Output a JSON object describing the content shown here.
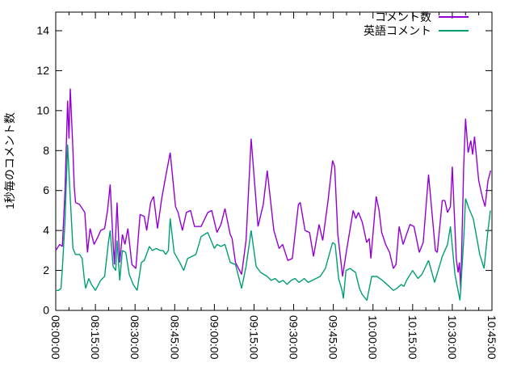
{
  "chart_data": {
    "type": "line",
    "title": "",
    "background": "#ffffff",
    "grid": false,
    "border_color": "#000000",
    "x_axis": {
      "label": "",
      "tick_labels": [
        "08:00:00",
        "08:15:00",
        "08:30:00",
        "08:45:00",
        "09:00:00",
        "09:15:00",
        "09:30:00",
        "09:45:00",
        "10:00:00",
        "10:15:00",
        "10:30:00",
        "10:45:00"
      ],
      "tick_minutes": [
        0,
        15,
        30,
        45,
        60,
        75,
        90,
        105,
        120,
        135,
        150,
        165
      ],
      "minor_tick_minutes": 5,
      "range_minutes": [
        0,
        165
      ],
      "labels_rotated_deg": 90
    },
    "y_axis": {
      "label": "1秒毎のコメント数",
      "ticks": [
        0,
        2,
        4,
        6,
        8,
        10,
        12,
        14
      ],
      "range": [
        0,
        14.9
      ]
    },
    "legend": {
      "position": "top-right-inside",
      "entries": [
        "コメント数",
        "英語コメント"
      ]
    },
    "series": [
      {
        "name": "コメント数",
        "color": "#9400d3",
        "x_unit": "minutes_from_08:00:00",
        "points": [
          [
            0,
            3.0
          ],
          [
            1.5,
            3.3
          ],
          [
            2.5,
            3.2
          ],
          [
            3.5,
            6.0
          ],
          [
            4.5,
            10.5
          ],
          [
            5,
            8.6
          ],
          [
            5.5,
            11.1
          ],
          [
            6.5,
            8.0
          ],
          [
            7,
            6.2
          ],
          [
            7.5,
            5.4
          ],
          [
            9,
            5.3
          ],
          [
            10.5,
            5.0
          ],
          [
            11,
            4.9
          ],
          [
            12,
            2.9
          ],
          [
            13,
            4.1
          ],
          [
            14.5,
            3.3
          ],
          [
            16,
            3.7
          ],
          [
            17,
            4.0
          ],
          [
            18.5,
            4.1
          ],
          [
            19.6,
            5.0
          ],
          [
            20.6,
            6.3
          ],
          [
            21.7,
            3.4
          ],
          [
            22.2,
            2.3
          ],
          [
            23.2,
            5.4
          ],
          [
            24.2,
            2.4
          ],
          [
            25.2,
            3.8
          ],
          [
            26.2,
            3.3
          ],
          [
            27.3,
            4.1
          ],
          [
            28.8,
            2.3
          ],
          [
            30.3,
            2.1
          ],
          [
            31.9,
            4.8
          ],
          [
            33.5,
            4.7
          ],
          [
            34.4,
            4.0
          ],
          [
            35.9,
            5.4
          ],
          [
            37,
            5.7
          ],
          [
            38.5,
            4.1
          ],
          [
            40.1,
            5.6
          ],
          [
            41.6,
            6.7
          ],
          [
            43.3,
            7.9
          ],
          [
            45.3,
            5.2
          ],
          [
            46.3,
            4.9
          ],
          [
            47.9,
            4.0
          ],
          [
            49.4,
            4.9
          ],
          [
            51,
            5.0
          ],
          [
            52.5,
            4.2
          ],
          [
            55,
            4.2
          ],
          [
            57.5,
            4.9
          ],
          [
            59,
            5.0
          ],
          [
            61,
            3.9
          ],
          [
            62.5,
            4.3
          ],
          [
            64,
            5.1
          ],
          [
            66,
            3.8
          ],
          [
            66.7,
            3.6
          ],
          [
            68,
            2.4
          ],
          [
            70.3,
            1.8
          ],
          [
            72,
            3.5
          ],
          [
            73.9,
            8.6
          ],
          [
            76.5,
            4.2
          ],
          [
            78.5,
            5.3
          ],
          [
            80,
            7.0
          ],
          [
            82.5,
            4.0
          ],
          [
            84.5,
            3.1
          ],
          [
            85.8,
            3.3
          ],
          [
            87.8,
            2.5
          ],
          [
            89.5,
            2.6
          ],
          [
            91.8,
            5.3
          ],
          [
            92.5,
            5.4
          ],
          [
            94.3,
            4.0
          ],
          [
            96,
            3.9
          ],
          [
            97.5,
            2.7
          ],
          [
            99.6,
            4.3
          ],
          [
            101,
            3.5
          ],
          [
            103,
            5.5
          ],
          [
            104.7,
            7.5
          ],
          [
            105.5,
            7.2
          ],
          [
            106.7,
            3.8
          ],
          [
            108.5,
            1.7
          ],
          [
            110,
            3.0
          ],
          [
            112.5,
            5.0
          ],
          [
            113.5,
            4.6
          ],
          [
            114.5,
            4.9
          ],
          [
            116,
            4.4
          ],
          [
            117.6,
            3.4
          ],
          [
            118.6,
            3.6
          ],
          [
            119.2,
            2.6
          ],
          [
            121.2,
            5.7
          ],
          [
            122.3,
            5.0
          ],
          [
            123.3,
            3.9
          ],
          [
            124.8,
            3.3
          ],
          [
            126.3,
            2.9
          ],
          [
            127.7,
            2.1
          ],
          [
            128.7,
            2.3
          ],
          [
            129.9,
            4.2
          ],
          [
            131.4,
            3.3
          ],
          [
            134,
            4.3
          ],
          [
            135.5,
            4.2
          ],
          [
            137.5,
            2.9
          ],
          [
            139,
            3.4
          ],
          [
            141,
            6.8
          ],
          [
            143.6,
            3.0
          ],
          [
            144.3,
            2.9
          ],
          [
            146.2,
            5.5
          ],
          [
            147.2,
            5.5
          ],
          [
            148.2,
            4.9
          ],
          [
            149.3,
            5.2
          ],
          [
            150,
            7.2
          ],
          [
            151.5,
            2.6
          ],
          [
            152.2,
            1.9
          ],
          [
            152.7,
            2.4
          ],
          [
            153.2,
            1.0
          ],
          [
            154.3,
            7.2
          ],
          [
            155,
            9.6
          ],
          [
            156,
            7.9
          ],
          [
            157,
            8.5
          ],
          [
            157.7,
            7.8
          ],
          [
            158.4,
            8.7
          ],
          [
            160,
            6.5
          ],
          [
            161.5,
            5.6
          ],
          [
            162.4,
            5.2
          ],
          [
            163.5,
            6.5
          ],
          [
            164.5,
            7.0
          ]
        ]
      },
      {
        "name": "英語コメント",
        "color": "#009e73",
        "x_unit": "minutes_from_08:00:00",
        "points": [
          [
            0,
            1.0
          ],
          [
            1,
            1.0
          ],
          [
            2,
            1.1
          ],
          [
            2.5,
            2.1
          ],
          [
            3.5,
            4.5
          ],
          [
            4.5,
            8.3
          ],
          [
            5.5,
            5.6
          ],
          [
            6.5,
            3.1
          ],
          [
            7.5,
            2.8
          ],
          [
            9,
            2.8
          ],
          [
            10,
            2.6
          ],
          [
            10.8,
            1.6
          ],
          [
            11.3,
            1.1
          ],
          [
            12.5,
            1.6
          ],
          [
            13.5,
            1.3
          ],
          [
            15,
            1.0
          ],
          [
            17,
            1.5
          ],
          [
            18.5,
            1.7
          ],
          [
            20,
            3.5
          ],
          [
            20.6,
            4.0
          ],
          [
            21.7,
            2.2
          ],
          [
            22.7,
            2.0
          ],
          [
            23.2,
            3.5
          ],
          [
            24.2,
            1.5
          ],
          [
            25.2,
            3.0
          ],
          [
            26.5,
            2.9
          ],
          [
            27.8,
            1.8
          ],
          [
            29.3,
            1.3
          ],
          [
            30.8,
            1.0
          ],
          [
            32.4,
            2.4
          ],
          [
            33.5,
            2.5
          ],
          [
            35.4,
            3.2
          ],
          [
            36.5,
            3.0
          ],
          [
            38,
            3.1
          ],
          [
            39.5,
            3.0
          ],
          [
            40.6,
            3.0
          ],
          [
            41.6,
            2.8
          ],
          [
            42.6,
            3.0
          ],
          [
            43.3,
            4.6
          ],
          [
            44.8,
            2.9
          ],
          [
            46.9,
            2.4
          ],
          [
            48.4,
            2.0
          ],
          [
            49.9,
            2.6
          ],
          [
            51.5,
            2.7
          ],
          [
            53,
            2.8
          ],
          [
            55,
            3.7
          ],
          [
            57.5,
            3.9
          ],
          [
            60,
            3.1
          ],
          [
            61,
            3.3
          ],
          [
            62.5,
            3.2
          ],
          [
            64,
            3.3
          ],
          [
            66,
            2.4
          ],
          [
            68,
            2.3
          ],
          [
            70.3,
            1.1
          ],
          [
            72,
            2.2
          ],
          [
            73.9,
            4.0
          ],
          [
            75.8,
            2.2
          ],
          [
            77.5,
            1.9
          ],
          [
            80,
            1.7
          ],
          [
            81.5,
            1.5
          ],
          [
            83,
            1.6
          ],
          [
            84.5,
            1.4
          ],
          [
            86,
            1.5
          ],
          [
            87.5,
            1.3
          ],
          [
            89,
            1.5
          ],
          [
            90.5,
            1.6
          ],
          [
            92,
            1.4
          ],
          [
            94,
            1.6
          ],
          [
            95.5,
            1.4
          ],
          [
            97,
            1.5
          ],
          [
            100,
            1.7
          ],
          [
            102,
            2.1
          ],
          [
            104.7,
            3.4
          ],
          [
            105.7,
            3.3
          ],
          [
            107,
            1.6
          ],
          [
            108.3,
            1.0
          ],
          [
            108.8,
            0.6
          ],
          [
            109.8,
            2.0
          ],
          [
            111.3,
            2.1
          ],
          [
            113.4,
            1.9
          ],
          [
            114.9,
            1.1
          ],
          [
            115.9,
            0.8
          ],
          [
            117.7,
            0.5
          ],
          [
            119.5,
            1.7
          ],
          [
            121.5,
            1.7
          ],
          [
            123.6,
            1.5
          ],
          [
            126.1,
            1.2
          ],
          [
            127.7,
            1.0
          ],
          [
            129,
            1.1
          ],
          [
            130.7,
            1.3
          ],
          [
            131.7,
            1.2
          ],
          [
            132.7,
            1.5
          ],
          [
            135,
            2.0
          ],
          [
            137,
            1.6
          ],
          [
            138.5,
            1.8
          ],
          [
            141,
            2.5
          ],
          [
            143.3,
            1.4
          ],
          [
            146.2,
            2.7
          ],
          [
            148.2,
            3.3
          ],
          [
            149.3,
            4.2
          ],
          [
            151,
            1.8
          ],
          [
            152.9,
            0.5
          ],
          [
            154.3,
            3.5
          ],
          [
            155,
            5.6
          ],
          [
            156.3,
            5.1
          ],
          [
            157.9,
            4.6
          ],
          [
            158.9,
            3.9
          ],
          [
            160.4,
            2.8
          ],
          [
            162,
            2.1
          ],
          [
            163.4,
            3.9
          ],
          [
            164.4,
            5.0
          ]
        ]
      }
    ]
  }
}
